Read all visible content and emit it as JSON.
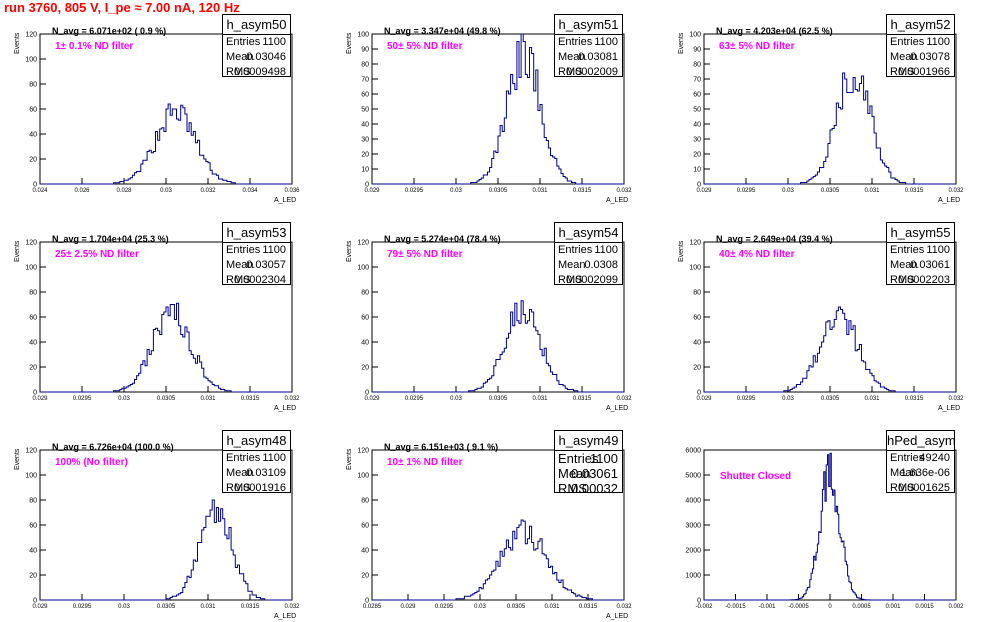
{
  "run_title": "run 3760,   805 V, I_pe ≈ 7.00 nA, 120 Hz",
  "chart_data": [
    {
      "type": "histogram",
      "name": "h_asym50",
      "n_avg_label": "N_avg = 6.071e+02 ( 0.9 %)",
      "note": "1± 0.1% ND filter",
      "stats": {
        "entries": "1100",
        "mean": "0.03046",
        "rms": "0.0009498"
      },
      "xlim": [
        0.024,
        0.036
      ],
      "ylim": [
        0,
        120
      ],
      "xticks": [
        "0.024",
        "0.026",
        "0.028",
        "0.03",
        "0.032",
        "0.034",
        "0.036"
      ],
      "yticks": [
        "0",
        "20",
        "40",
        "60",
        "80",
        "100",
        "120"
      ],
      "ylabel": "Events",
      "xlabel": "A_LED",
      "mean": 0.03046,
      "sigma": 0.00095,
      "peak": 58,
      "bins": 120,
      "xrange_fill": [
        0.027,
        0.0335
      ]
    },
    {
      "type": "histogram",
      "name": "h_asym51",
      "n_avg_label": "N_avg = 3.347e+04 (49.8 %)",
      "note": "50± 5% ND filter",
      "stats": {
        "entries": "1100",
        "mean": "0.03081",
        "rms": "0.0002009"
      },
      "xlim": [
        0.029,
        0.032
      ],
      "ylim": [
        0,
        100
      ],
      "xticks": [
        "0.029",
        "0.0295",
        "0.03",
        "0.0305",
        "0.031",
        "0.0315",
        "0.032"
      ],
      "yticks": [
        "0",
        "10",
        "20",
        "30",
        "40",
        "50",
        "60",
        "70",
        "80",
        "90",
        "100"
      ],
      "ylabel": "Events",
      "xlabel": "A_LED",
      "mean": 0.03081,
      "sigma": 0.0002,
      "peak": 86,
      "bins": 120,
      "xrange_fill": [
        0.0301,
        0.0316
      ]
    },
    {
      "type": "histogram",
      "name": "h_asym52",
      "n_avg_label": "N_avg = 4.203e+04 (62.5 %)",
      "note": "63± 5% ND filter",
      "stats": {
        "entries": "1100",
        "mean": "0.03078",
        "rms": "0.0001966"
      },
      "xlim": [
        0.029,
        0.032
      ],
      "ylim": [
        0,
        100
      ],
      "xticks": [
        "0.029",
        "0.0295",
        "0.03",
        "0.0305",
        "0.031",
        "0.0315",
        "0.032"
      ],
      "yticks": [
        "0",
        "10",
        "20",
        "30",
        "40",
        "50",
        "60",
        "70",
        "80",
        "90",
        "100"
      ],
      "ylabel": "Events",
      "xlabel": "A_LED",
      "mean": 0.03078,
      "sigma": 0.0002,
      "peak": 75,
      "bins": 120,
      "xrange_fill": [
        0.0301,
        0.0316
      ]
    },
    {
      "type": "histogram",
      "name": "h_asym53",
      "n_avg_label": "N_avg = 1.704e+04 (25.3 %)",
      "note": "25± 2.5% ND filter",
      "stats": {
        "entries": "1100",
        "mean": "0.03057",
        "rms": "0.0002304"
      },
      "xlim": [
        0.029,
        0.032
      ],
      "ylim": [
        0,
        120
      ],
      "xticks": [
        "0.029",
        "0.0295",
        "0.03",
        "0.0305",
        "0.031",
        "0.0315",
        "0.032"
      ],
      "yticks": [
        "0",
        "20",
        "40",
        "60",
        "80",
        "100",
        "120"
      ],
      "ylabel": "Events",
      "xlabel": "A_LED",
      "mean": 0.03057,
      "sigma": 0.00023,
      "peak": 63,
      "bins": 120,
      "xrange_fill": [
        0.0297,
        0.0315
      ]
    },
    {
      "type": "histogram",
      "name": "h_asym54",
      "n_avg_label": "N_avg = 5.274e+04 (78.4 %)",
      "note": "79± 5% ND filter",
      "stats": {
        "entries": "1100",
        "mean": "0.0308",
        "rms": "0.0002099"
      },
      "xlim": [
        0.029,
        0.032
      ],
      "ylim": [
        0,
        120
      ],
      "xticks": [
        "0.029",
        "0.0295",
        "0.03",
        "0.0305",
        "0.031",
        "0.0315",
        "0.032"
      ],
      "yticks": [
        "0",
        "20",
        "40",
        "60",
        "80",
        "100",
        "120"
      ],
      "ylabel": "Events",
      "xlabel": "A_LED",
      "mean": 0.0308,
      "sigma": 0.00021,
      "peak": 69,
      "bins": 120,
      "xrange_fill": [
        0.03,
        0.0316
      ]
    },
    {
      "type": "histogram",
      "name": "h_asym55",
      "n_avg_label": "N_avg = 2.649e+04 (39.4 %)",
      "note": "40± 4% ND filter",
      "stats": {
        "entries": "1100",
        "mean": "0.03061",
        "rms": "0.0002203"
      },
      "xlim": [
        0.029,
        0.032
      ],
      "ylim": [
        0,
        120
      ],
      "xticks": [
        "0.029",
        "0.0295",
        "0.03",
        "0.0305",
        "0.031",
        "0.0315",
        "0.032"
      ],
      "yticks": [
        "0",
        "20",
        "40",
        "60",
        "80",
        "100",
        "120"
      ],
      "ylabel": "Events",
      "xlabel": "A_LED",
      "mean": 0.03061,
      "sigma": 0.00022,
      "peak": 63,
      "bins": 120,
      "xrange_fill": [
        0.0298,
        0.0315
      ]
    },
    {
      "type": "histogram",
      "name": "h_asym48",
      "n_avg_label": "N_avg = 6.726e+04 (100.0 %)",
      "note": "100% (No filter)",
      "stats": {
        "entries": "1100",
        "mean": "0.03109",
        "rms": "0.0001916"
      },
      "xlim": [
        0.029,
        0.032
      ],
      "ylim": [
        0,
        120
      ],
      "xticks": [
        "0.029",
        "0.0295",
        "0.03",
        "0.0305",
        "0.031",
        "0.0315",
        "0.032"
      ],
      "yticks": [
        "0",
        "20",
        "40",
        "60",
        "80",
        "100",
        "120"
      ],
      "ylabel": "Events",
      "xlabel": "A_LED",
      "mean": 0.03109,
      "sigma": 0.00019,
      "peak": 74,
      "bins": 120,
      "xrange_fill": [
        0.0304,
        0.0318
      ]
    },
    {
      "type": "histogram",
      "name": "h_asym49",
      "n_avg_label": "N_avg = 6.151e+03 ( 9.1 %)",
      "note": "10± 1% ND filter",
      "stats": {
        "entries": "1100",
        "mean": "0.03061",
        "rms": "0.00032"
      },
      "big_stats": true,
      "xlim": [
        0.0285,
        0.032
      ],
      "ylim": [
        0,
        120
      ],
      "xticks": [
        "0.0285",
        "0.029",
        "0.0295",
        "0.03",
        "0.0305",
        "0.031",
        "0.0315",
        "0.032"
      ],
      "yticks": [
        "0",
        "20",
        "40",
        "60",
        "80",
        "100",
        "120"
      ],
      "ylabel": "Events",
      "xlabel": "A_LED",
      "mean": 0.03061,
      "sigma": 0.00032,
      "peak": 54,
      "bins": 120,
      "xrange_fill": [
        0.0294,
        0.0318
      ]
    },
    {
      "type": "histogram",
      "name": "hPed_asym",
      "n_avg_label": "",
      "note": "Shutter Closed",
      "stats": {
        "entries": "49240",
        "mean": "1.636e-06",
        "rms": "0.0001625"
      },
      "xlim": [
        -0.002,
        0.002
      ],
      "ylim": [
        0,
        6000
      ],
      "xticks": [
        "-0.002",
        "-0.0015",
        "-0.001",
        "-0.0005",
        "0",
        "0.0005",
        "0.001",
        "0.0015",
        "0.002"
      ],
      "yticks": [
        "0",
        "1000",
        "2000",
        "3000",
        "4000",
        "5000",
        "6000"
      ],
      "ylabel": "",
      "xlabel": "",
      "mean": 0.0,
      "sigma": 0.00016,
      "peak": 5050,
      "bins": 200,
      "xrange_fill": [
        -0.0008,
        0.0008
      ]
    }
  ]
}
